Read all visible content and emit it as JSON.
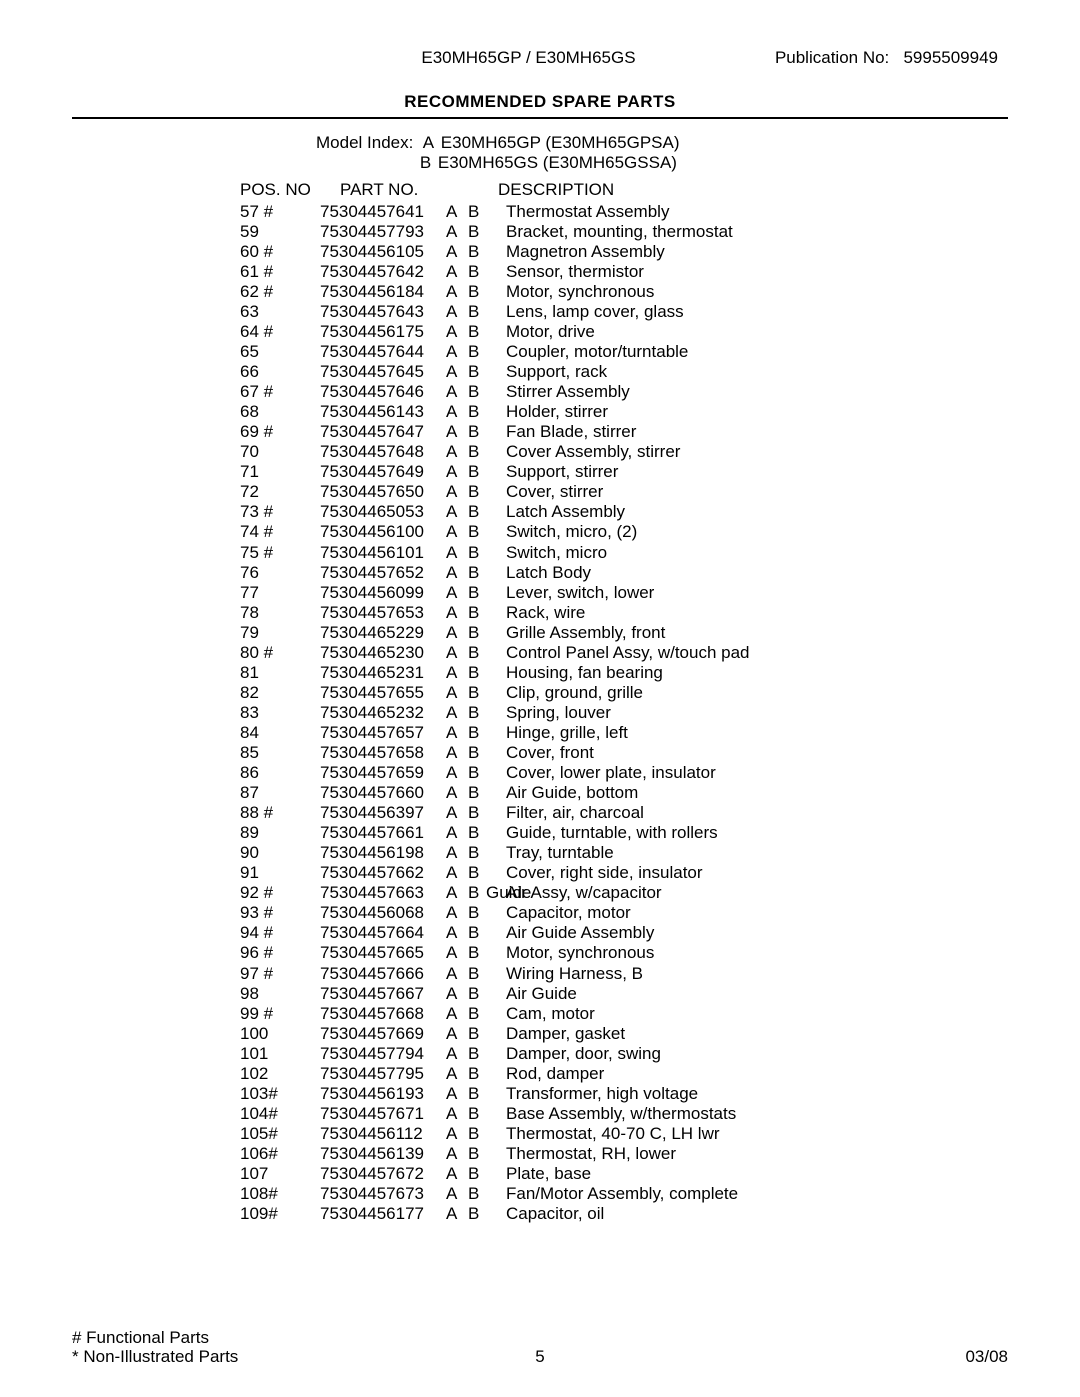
{
  "header": {
    "model_header": "E30MH65GP / E30MH65GS",
    "publication_label": "Publication No:",
    "publication_no": "5995509949"
  },
  "title": "RECOMMENDED SPARE PARTS",
  "model_index": {
    "label": "Model Index:  ",
    "lines": [
      {
        "letter": "A",
        "text": "E30MH65GP (E30MH65GPSA)"
      },
      {
        "letter": "B",
        "text": "E30MH65GS (E30MH65GSSA)"
      }
    ]
  },
  "columns": {
    "pos": "POS. NO",
    "part": "PART NO.",
    "desc": "DESCRIPTION"
  },
  "rows": [
    {
      "pos": "57 #",
      "part": "75304457641",
      "a": "A",
      "b": "B",
      "desc": "Thermostat Assembly"
    },
    {
      "pos": "59",
      "part": "75304457793",
      "a": "A",
      "b": "B",
      "desc": "Bracket, mounting, thermostat"
    },
    {
      "pos": "60 #",
      "part": "75304456105",
      "a": "A",
      "b": "B",
      "desc": "Magnetron Assembly"
    },
    {
      "pos": "61 #",
      "part": "75304457642",
      "a": "A",
      "b": "B",
      "desc": "Sensor, thermistor"
    },
    {
      "pos": "62 #",
      "part": "75304456184",
      "a": "A",
      "b": "B",
      "desc": "Motor, synchronous"
    },
    {
      "pos": "63",
      "part": "75304457643",
      "a": "A",
      "b": "B",
      "desc": "Lens, lamp cover, glass"
    },
    {
      "pos": "64 #",
      "part": "75304456175",
      "a": "A",
      "b": "B",
      "desc": "Motor, drive"
    },
    {
      "pos": "65",
      "part": "75304457644",
      "a": "A",
      "b": "B",
      "desc": "Coupler, motor/turntable"
    },
    {
      "pos": "66",
      "part": "75304457645",
      "a": "A",
      "b": "B",
      "desc": "Support, rack"
    },
    {
      "pos": "67 #",
      "part": "75304457646",
      "a": "A",
      "b": "B",
      "desc": "Stirrer Assembly"
    },
    {
      "pos": "68",
      "part": "75304456143",
      "a": "A",
      "b": "B",
      "desc": "Holder, stirrer"
    },
    {
      "pos": "69 #",
      "part": "75304457647",
      "a": "A",
      "b": "B",
      "desc": "Fan Blade, stirrer"
    },
    {
      "pos": "70",
      "part": "75304457648",
      "a": "A",
      "b": "B",
      "desc": "Cover Assembly, stirrer"
    },
    {
      "pos": "71",
      "part": "75304457649",
      "a": "A",
      "b": "B",
      "desc": "Support, stirrer"
    },
    {
      "pos": "72",
      "part": "75304457650",
      "a": "A",
      "b": "B",
      "desc": "Cover, stirrer"
    },
    {
      "pos": "73 #",
      "part": "75304465053",
      "a": "A",
      "b": "B",
      "desc": "Latch Assembly"
    },
    {
      "pos": "74 #",
      "part": "75304456100",
      "a": "A",
      "b": "B",
      "desc": "Switch, micro, (2)"
    },
    {
      "pos": "75 #",
      "part": "75304456101",
      "a": "A",
      "b": "B",
      "desc": "Switch, micro"
    },
    {
      "pos": "76",
      "part": "75304457652",
      "a": "A",
      "b": "B",
      "desc": "Latch Body"
    },
    {
      "pos": "77",
      "part": "75304456099",
      "a": "A",
      "b": "B",
      "desc": "Lever, switch, lower"
    },
    {
      "pos": "78",
      "part": "75304457653",
      "a": "A",
      "b": "B",
      "desc": "Rack, wire"
    },
    {
      "pos": "79",
      "part": "75304465229",
      "a": "A",
      "b": "B",
      "desc": "Grille Assembly, front"
    },
    {
      "pos": "80 #",
      "part": "75304465230",
      "a": "A",
      "b": "B",
      "desc": "Control Panel Assy, w/touch pad"
    },
    {
      "pos": "81",
      "part": "75304465231",
      "a": "A",
      "b": "B",
      "desc": "Housing, fan bearing"
    },
    {
      "pos": "82",
      "part": "75304457655",
      "a": "A",
      "b": "B",
      "desc": "Clip, ground, grille"
    },
    {
      "pos": "83",
      "part": "75304465232",
      "a": "A",
      "b": "B",
      "desc": "Spring, louver"
    },
    {
      "pos": "84",
      "part": "75304457657",
      "a": "A",
      "b": "B",
      "desc": "Hinge, grille, left"
    },
    {
      "pos": "85",
      "part": "75304457658",
      "a": "A",
      "b": "B",
      "desc": "Cover, front"
    },
    {
      "pos": "86",
      "part": "75304457659",
      "a": "A",
      "b": "B",
      "desc": "Cover, lower plate, insulator"
    },
    {
      "pos": "87",
      "part": "75304457660",
      "a": "A",
      "b": "B",
      "desc": "Air Guide, bottom"
    },
    {
      "pos": "88 #",
      "part": "75304456397",
      "a": "A",
      "b": "B",
      "desc": "Filter, air, charcoal"
    },
    {
      "pos": "89",
      "part": "75304457661",
      "a": "A",
      "b": "B",
      "desc": "Guide, turntable, with rollers"
    },
    {
      "pos": "90",
      "part": "75304456198",
      "a": "A",
      "b": "B",
      "desc": "Tray, turntable"
    },
    {
      "pos": "91",
      "part": "75304457662",
      "a": "A",
      "b": "B",
      "desc": "Cover, right side, insulator"
    },
    {
      "pos": "92 #",
      "part": "75304457663",
      "a": "A",
      "b": "B",
      "desc_overlap_left": "Guide",
      "desc_overlap_right": "Air Assy, w/capacitor",
      "overlap": true
    },
    {
      "pos": "93 #",
      "part": "75304456068",
      "a": "A",
      "b": "B",
      "desc": "Capacitor, motor"
    },
    {
      "pos": "94 #",
      "part": "75304457664",
      "a": "A",
      "b": "B",
      "desc": "Air Guide Assembly"
    },
    {
      "pos": "96 #",
      "part": "75304457665",
      "a": "A",
      "b": "B",
      "desc": "Motor, synchronous"
    },
    {
      "pos": "97 #",
      "part": "75304457666",
      "a": "A",
      "b": "B",
      "desc": "Wiring Harness, B"
    },
    {
      "pos": "98",
      "part": "75304457667",
      "a": "A",
      "b": "B",
      "desc": "Air Guide"
    },
    {
      "pos": "99 #",
      "part": "75304457668",
      "a": "A",
      "b": "B",
      "desc": "Cam, motor"
    },
    {
      "pos": "100",
      "part": "75304457669",
      "a": "A",
      "b": "B",
      "desc": "Damper, gasket"
    },
    {
      "pos": "101",
      "part": "75304457794",
      "a": "A",
      "b": "B",
      "desc": "Damper, door, swing"
    },
    {
      "pos": "102",
      "part": "75304457795",
      "a": "A",
      "b": "B",
      "desc": "Rod, damper"
    },
    {
      "pos": "103#",
      "part": "75304456193",
      "a": "A",
      "b": "B",
      "desc": "Transformer, high voltage"
    },
    {
      "pos": "104#",
      "part": "75304457671",
      "a": "A",
      "b": "B",
      "desc": "Base Assembly, w/thermostats"
    },
    {
      "pos": "105#",
      "part": "75304456112",
      "a": "A",
      "b": "B",
      "desc": "Thermostat, 40-70 C, LH lwr"
    },
    {
      "pos": "106#",
      "part": "75304456139",
      "a": "A",
      "b": "B",
      "desc": "Thermostat, RH, lower"
    },
    {
      "pos": "107",
      "part": "75304457672",
      "a": "A",
      "b": "B",
      "desc": "Plate, base"
    },
    {
      "pos": "108#",
      "part": "75304457673",
      "a": "A",
      "b": "B",
      "desc": "Fan/Motor Assembly, complete"
    },
    {
      "pos": "109#",
      "part": "75304456177",
      "a": "A",
      "b": "B",
      "desc": "Capacitor, oil"
    }
  ],
  "footer": {
    "functional": "# Functional Parts",
    "nonillustrated": "* Non-Illustrated Parts",
    "page_no": "5",
    "date": "03/08"
  }
}
